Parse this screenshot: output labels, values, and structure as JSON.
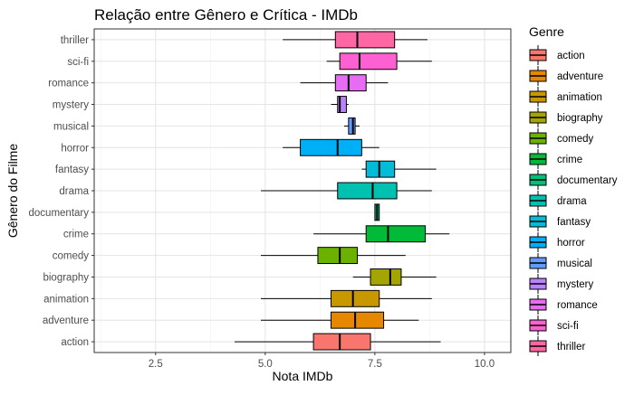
{
  "chart_data": {
    "type": "boxplot",
    "orientation": "horizontal",
    "title": "Relação entre Gênero e Crítica - IMDb",
    "xlabel": "Nota IMDb",
    "ylabel": "Gênero do Filme",
    "xlim": [
      1.1,
      10.6
    ],
    "x_ticks": [
      2.5,
      5.0,
      7.5,
      10.0
    ],
    "x_tick_labels": [
      "2.5",
      "5.0",
      "7.5",
      "10.0"
    ],
    "grid": true,
    "legend": {
      "title": "Genre",
      "position": "right"
    },
    "categories": [
      "action",
      "adventure",
      "animation",
      "biography",
      "comedy",
      "crime",
      "documentary",
      "drama",
      "fantasy",
      "horror",
      "musical",
      "mystery",
      "romance",
      "sci-fi",
      "thriller"
    ],
    "colors": [
      "#F8766D",
      "#E58700",
      "#C99800",
      "#A3A500",
      "#6BB100",
      "#00BA38",
      "#00BF7D",
      "#00C0AF",
      "#00BCD8",
      "#00B0F6",
      "#619CFF",
      "#B983FF",
      "#E76BF3",
      "#FD61D1",
      "#FF67A4"
    ],
    "boxes": [
      {
        "genre": "action",
        "min": 4.3,
        "q1": 6.1,
        "median": 6.7,
        "q3": 7.4,
        "max": 9.0
      },
      {
        "genre": "adventure",
        "min": 4.9,
        "q1": 6.5,
        "median": 7.05,
        "q3": 7.7,
        "max": 8.5
      },
      {
        "genre": "animation",
        "min": 4.9,
        "q1": 6.5,
        "median": 7.0,
        "q3": 7.6,
        "max": 8.8
      },
      {
        "genre": "biography",
        "min": 7.0,
        "q1": 7.4,
        "median": 7.85,
        "q3": 8.1,
        "max": 8.9
      },
      {
        "genre": "comedy",
        "min": 4.9,
        "q1": 6.2,
        "median": 6.7,
        "q3": 7.1,
        "max": 8.2
      },
      {
        "genre": "crime",
        "min": 6.1,
        "q1": 7.3,
        "median": 7.8,
        "q3": 8.65,
        "max": 9.2
      },
      {
        "genre": "documentary",
        "min": 7.5,
        "q1": 7.5,
        "median": 7.55,
        "q3": 7.6,
        "max": 7.6
      },
      {
        "genre": "drama",
        "min": 4.9,
        "q1": 6.65,
        "median": 7.45,
        "q3": 8.0,
        "max": 8.8
      },
      {
        "genre": "fantasy",
        "min": 7.2,
        "q1": 7.3,
        "median": 7.6,
        "q3": 7.95,
        "max": 8.9
      },
      {
        "genre": "horror",
        "min": 5.4,
        "q1": 5.8,
        "median": 6.65,
        "q3": 7.2,
        "max": 7.6
      },
      {
        "genre": "musical",
        "min": 6.8,
        "q1": 6.9,
        "median": 7.0,
        "q3": 7.05,
        "max": 7.15
      },
      {
        "genre": "mystery",
        "min": 6.5,
        "q1": 6.65,
        "median": 6.7,
        "q3": 6.85,
        "max": 6.9
      },
      {
        "genre": "romance",
        "min": 5.8,
        "q1": 6.6,
        "median": 6.9,
        "q3": 7.3,
        "max": 7.8
      },
      {
        "genre": "sci-fi",
        "min": 6.4,
        "q1": 6.7,
        "median": 7.15,
        "q3": 8.0,
        "max": 8.8
      },
      {
        "genre": "thriller",
        "min": 5.4,
        "q1": 6.6,
        "median": 7.1,
        "q3": 7.95,
        "max": 8.7
      }
    ]
  }
}
